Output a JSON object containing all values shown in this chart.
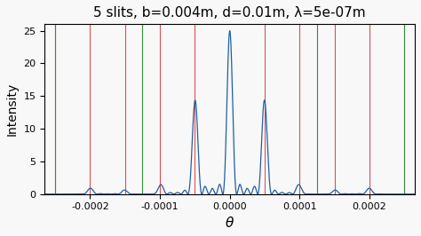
{
  "title": "5 slits, b=0.004m, d=0.01m, λ=5e-07m",
  "xlabel": "θ",
  "ylabel": "Intensity",
  "N": 5,
  "b": 0.004,
  "d": 0.01,
  "lam": 5e-07,
  "theta_min": -0.000265,
  "theta_max": 0.000265,
  "num_points": 20000,
  "ylim": [
    0,
    26
  ],
  "yticks": [
    0,
    5,
    10,
    15,
    20,
    25
  ],
  "xticks": [
    -0.0002,
    -0.0001,
    0.0,
    0.0001,
    0.0002
  ],
  "line_color": "#1f5fa6",
  "red_line_color": "#e05050",
  "green_line_color": "#3a8a3a",
  "bg_color": "#f8f8f8",
  "figsize": [
    4.74,
    2.66
  ],
  "dpi": 100
}
